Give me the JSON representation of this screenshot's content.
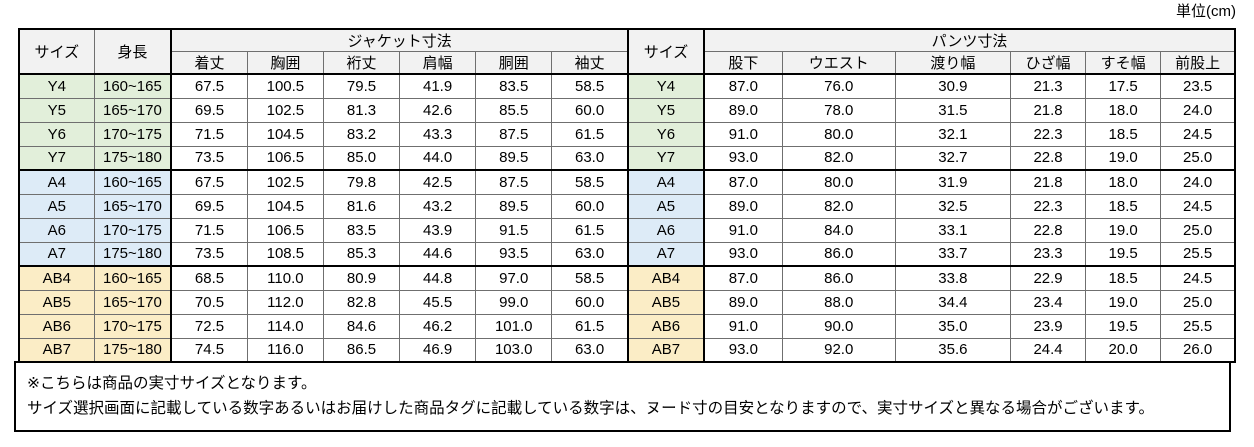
{
  "unit_label": "単位(cm)",
  "colors": {
    "group_y_tint": "#e2efda",
    "group_a_tint": "#ddebf7",
    "group_ab_tint": "#fbedc6",
    "header_bg": "#f2f2f2",
    "border_thick": "#000000",
    "border_thin": "#6f6f6f"
  },
  "table": {
    "col_headers": {
      "size": "サイズ",
      "height": "身長",
      "jacket_group": "ジャケット寸法",
      "jacket_cols": [
        "着丈",
        "胸囲",
        "裄丈",
        "肩幅",
        "胴囲",
        "袖丈"
      ],
      "size2": "サイズ",
      "pants_group": "パンツ寸法",
      "pants_cols": [
        "股下",
        "ウエスト",
        "渡り幅",
        "ひざ幅",
        "すそ幅",
        "前股上"
      ]
    },
    "groups": [
      {
        "key": "Y",
        "tint": "#e2efda",
        "rows": [
          {
            "size": "Y4",
            "height": "160~165",
            "jacket": [
              "67.5",
              "100.5",
              "79.5",
              "41.9",
              "83.5",
              "58.5"
            ],
            "pants": [
              "87.0",
              "76.0",
              "30.9",
              "21.3",
              "17.5",
              "23.5"
            ]
          },
          {
            "size": "Y5",
            "height": "165~170",
            "jacket": [
              "69.5",
              "102.5",
              "81.3",
              "42.6",
              "85.5",
              "60.0"
            ],
            "pants": [
              "89.0",
              "78.0",
              "31.5",
              "21.8",
              "18.0",
              "24.0"
            ]
          },
          {
            "size": "Y6",
            "height": "170~175",
            "jacket": [
              "71.5",
              "104.5",
              "83.2",
              "43.3",
              "87.5",
              "61.5"
            ],
            "pants": [
              "91.0",
              "80.0",
              "32.1",
              "22.3",
              "18.5",
              "24.5"
            ]
          },
          {
            "size": "Y7",
            "height": "175~180",
            "jacket": [
              "73.5",
              "106.5",
              "85.0",
              "44.0",
              "89.5",
              "63.0"
            ],
            "pants": [
              "93.0",
              "82.0",
              "32.7",
              "22.8",
              "19.0",
              "25.0"
            ]
          }
        ]
      },
      {
        "key": "A",
        "tint": "#ddebf7",
        "rows": [
          {
            "size": "A4",
            "height": "160~165",
            "jacket": [
              "67.5",
              "102.5",
              "79.8",
              "42.5",
              "87.5",
              "58.5"
            ],
            "pants": [
              "87.0",
              "80.0",
              "31.9",
              "21.8",
              "18.0",
              "24.0"
            ]
          },
          {
            "size": "A5",
            "height": "165~170",
            "jacket": [
              "69.5",
              "104.5",
              "81.6",
              "43.2",
              "89.5",
              "60.0"
            ],
            "pants": [
              "89.0",
              "82.0",
              "32.5",
              "22.3",
              "18.5",
              "24.5"
            ]
          },
          {
            "size": "A6",
            "height": "170~175",
            "jacket": [
              "71.5",
              "106.5",
              "83.5",
              "43.9",
              "91.5",
              "61.5"
            ],
            "pants": [
              "91.0",
              "84.0",
              "33.1",
              "22.8",
              "19.0",
              "25.0"
            ]
          },
          {
            "size": "A7",
            "height": "175~180",
            "jacket": [
              "73.5",
              "108.5",
              "85.3",
              "44.6",
              "93.5",
              "63.0"
            ],
            "pants": [
              "93.0",
              "86.0",
              "33.7",
              "23.3",
              "19.5",
              "25.5"
            ]
          }
        ]
      },
      {
        "key": "AB",
        "tint": "#fbedc6",
        "rows": [
          {
            "size": "AB4",
            "height": "160~165",
            "jacket": [
              "68.5",
              "110.0",
              "80.9",
              "44.8",
              "97.0",
              "58.5"
            ],
            "pants": [
              "87.0",
              "86.0",
              "33.8",
              "22.9",
              "18.5",
              "24.5"
            ]
          },
          {
            "size": "AB5",
            "height": "165~170",
            "jacket": [
              "70.5",
              "112.0",
              "82.8",
              "45.5",
              "99.0",
              "60.0"
            ],
            "pants": [
              "89.0",
              "88.0",
              "34.4",
              "23.4",
              "19.0",
              "25.0"
            ]
          },
          {
            "size": "AB6",
            "height": "170~175",
            "jacket": [
              "72.5",
              "114.0",
              "84.6",
              "46.2",
              "101.0",
              "61.5"
            ],
            "pants": [
              "91.0",
              "90.0",
              "35.0",
              "23.9",
              "19.5",
              "25.5"
            ]
          },
          {
            "size": "AB7",
            "height": "175~180",
            "jacket": [
              "74.5",
              "116.0",
              "86.5",
              "46.9",
              "103.0",
              "63.0"
            ],
            "pants": [
              "93.0",
              "92.0",
              "35.6",
              "24.4",
              "20.0",
              "26.0"
            ]
          }
        ]
      }
    ]
  },
  "notes": [
    "※こちらは商品の実寸サイズとなります。",
    "サイズ選択画面に記載している数字あるいはお届けした商品タグに記載している数字は、ヌード寸の目安となりますので、実寸サイズと異なる場合がございます。"
  ]
}
